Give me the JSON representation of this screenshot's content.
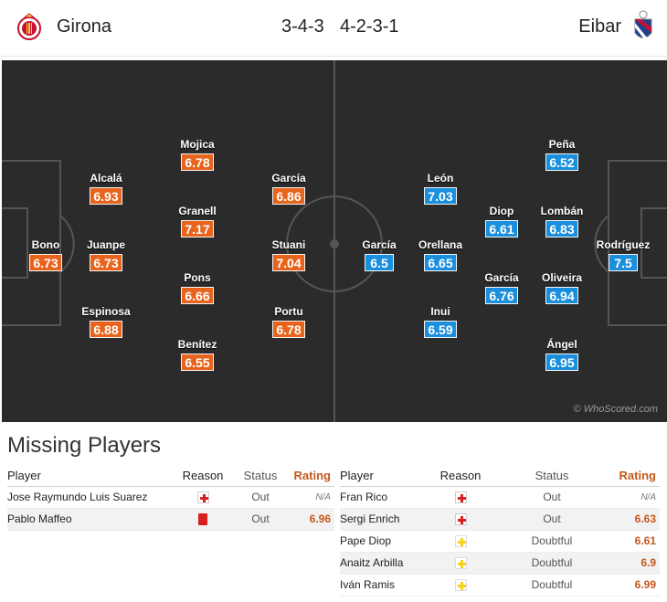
{
  "header": {
    "home_team": "Girona",
    "away_team": "Eibar",
    "home_formation": "3-4-3",
    "away_formation": "4-2-3-1"
  },
  "colors": {
    "home_rating": "#e8641c",
    "away_rating": "#1a8fde",
    "pitch": "#2b2b2b"
  },
  "icons": {
    "home_crest": "girona-crest-icon",
    "away_crest": "eibar-crest-icon"
  },
  "home_players": [
    {
      "name": "Bono",
      "rating": "6.73"
    },
    {
      "name": "Alcalá",
      "rating": "6.93"
    },
    {
      "name": "Juanpe",
      "rating": "6.73"
    },
    {
      "name": "Espinosa",
      "rating": "6.88"
    },
    {
      "name": "Mojica",
      "rating": "6.78"
    },
    {
      "name": "Granell",
      "rating": "7.17"
    },
    {
      "name": "Pons",
      "rating": "6.66"
    },
    {
      "name": "Benítez",
      "rating": "6.55"
    },
    {
      "name": "García",
      "rating": "6.86"
    },
    {
      "name": "Stuani",
      "rating": "7.04"
    },
    {
      "name": "Portu",
      "rating": "6.78"
    }
  ],
  "away_players": [
    {
      "name": "Rodríguez",
      "rating": "7.5"
    },
    {
      "name": "Peña",
      "rating": "6.52"
    },
    {
      "name": "Lombán",
      "rating": "6.83"
    },
    {
      "name": "Oliveira",
      "rating": "6.94"
    },
    {
      "name": "Ángel",
      "rating": "6.95"
    },
    {
      "name": "Diop",
      "rating": "6.61"
    },
    {
      "name": "García",
      "rating": "6.76"
    },
    {
      "name": "León",
      "rating": "7.03"
    },
    {
      "name": "Orellana",
      "rating": "6.65"
    },
    {
      "name": "Inui",
      "rating": "6.59"
    },
    {
      "name": "García",
      "rating": "6.5"
    }
  ],
  "watermark": "© WhoScored.com",
  "missing": {
    "title": "Missing Players",
    "headers": {
      "player": "Player",
      "reason": "Reason",
      "status": "Status",
      "rating": "Rating"
    },
    "home": [
      {
        "player": "Jose Raymundo Luis Suarez",
        "reason": "injury-icon",
        "status": "Out",
        "rating": "N/A"
      },
      {
        "player": "Pablo Maffeo",
        "reason": "red-card-icon",
        "status": "Out",
        "rating": "6.96"
      }
    ],
    "away": [
      {
        "player": "Fran Rico",
        "reason": "injury-icon",
        "status": "Out",
        "rating": "N/A"
      },
      {
        "player": "Sergi Enrich",
        "reason": "injury-icon",
        "status": "Out",
        "rating": "6.63"
      },
      {
        "player": "Pape Diop",
        "reason": "doubtful-icon",
        "status": "Doubtful",
        "rating": "6.61"
      },
      {
        "player": "Anaitz Arbilla",
        "reason": "doubtful-icon",
        "status": "Doubtful",
        "rating": "6.9"
      },
      {
        "player": "Iván Ramis",
        "reason": "doubtful-icon",
        "status": "Doubtful",
        "rating": "6.99"
      }
    ]
  }
}
